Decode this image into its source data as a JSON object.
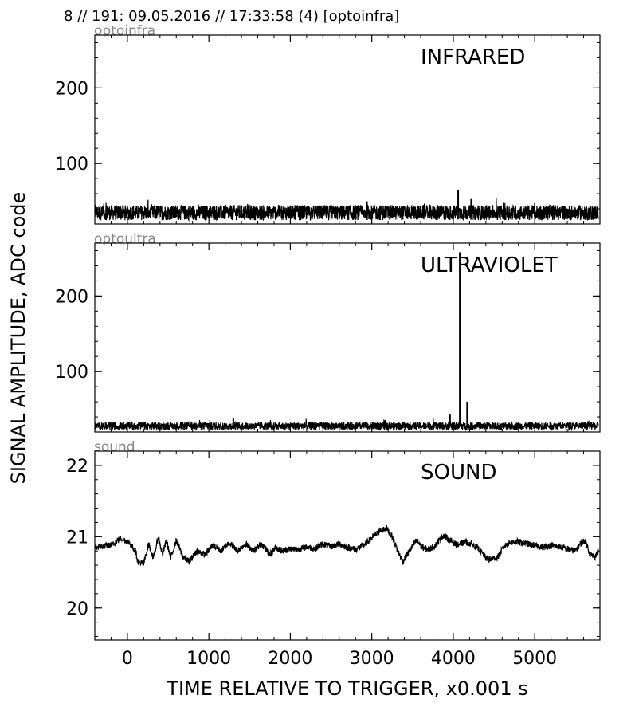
{
  "figure": {
    "title": "8 // 191:   09.05.2016 // 17:33:58 (4)  [optoinfra]",
    "xlabel": "TIME RELATIVE TO TRIGGER,   x0.001 s",
    "ylabel": "SIGNAL AMPLITUDE,  ADC code",
    "line_color": "#000000",
    "tag_color": "#888888"
  },
  "chart_data": [
    {
      "type": "line",
      "channel": "optoinfra",
      "label": "INFRARED",
      "xlim": [
        -400,
        5800
      ],
      "ylim": [
        20,
        270
      ],
      "yticks": [
        100,
        200
      ],
      "xticks": [
        0,
        1000,
        2000,
        3000,
        4000,
        5000
      ],
      "show_xticklabels": false,
      "baseline": 35,
      "noise": 10,
      "spikes": [
        {
          "x": 4060,
          "y": 65
        },
        {
          "x": 4220,
          "y": 53
        },
        {
          "x": 2940,
          "y": 50
        }
      ]
    },
    {
      "type": "line",
      "channel": "optoultra",
      "label": "ULTRAVIOLET",
      "xlim": [
        -400,
        5800
      ],
      "ylim": [
        20,
        270
      ],
      "yticks": [
        100,
        200
      ],
      "xticks": [
        0,
        1000,
        2000,
        3000,
        4000,
        5000
      ],
      "show_xticklabels": false,
      "baseline": 28,
      "noise": 5,
      "spikes": [
        {
          "x": 4080,
          "y": 258
        },
        {
          "x": 4170,
          "y": 60
        },
        {
          "x": 3960,
          "y": 43
        },
        {
          "x": 1300,
          "y": 38
        }
      ]
    },
    {
      "type": "line",
      "channel": "sound",
      "label": "SOUND",
      "xlim": [
        -400,
        5800
      ],
      "ylim": [
        19.55,
        22.2
      ],
      "yticks": [
        20,
        21,
        22
      ],
      "xticks": [
        0,
        1000,
        2000,
        3000,
        4000,
        5000
      ],
      "show_xticklabels": true,
      "points": [
        [
          -400,
          20.85
        ],
        [
          -200,
          20.88
        ],
        [
          -80,
          20.98
        ],
        [
          20,
          20.92
        ],
        [
          100,
          20.8
        ],
        [
          130,
          20.65
        ],
        [
          200,
          20.62
        ],
        [
          260,
          20.9
        ],
        [
          320,
          20.7
        ],
        [
          380,
          21.0
        ],
        [
          430,
          20.75
        ],
        [
          480,
          20.95
        ],
        [
          530,
          20.7
        ],
        [
          600,
          20.95
        ],
        [
          680,
          20.72
        ],
        [
          760,
          20.65
        ],
        [
          850,
          20.8
        ],
        [
          950,
          20.75
        ],
        [
          1050,
          20.88
        ],
        [
          1150,
          20.8
        ],
        [
          1250,
          20.92
        ],
        [
          1350,
          20.8
        ],
        [
          1450,
          20.9
        ],
        [
          1550,
          20.8
        ],
        [
          1650,
          20.9
        ],
        [
          1750,
          20.75
        ],
        [
          1820,
          20.85
        ],
        [
          1900,
          20.8
        ],
        [
          2000,
          20.83
        ],
        [
          2100,
          20.82
        ],
        [
          2200,
          20.86
        ],
        [
          2300,
          20.83
        ],
        [
          2400,
          20.9
        ],
        [
          2500,
          20.86
        ],
        [
          2600,
          20.9
        ],
        [
          2700,
          20.85
        ],
        [
          2800,
          20.82
        ],
        [
          2900,
          20.88
        ],
        [
          3000,
          20.98
        ],
        [
          3100,
          21.08
        ],
        [
          3180,
          21.12
        ],
        [
          3250,
          21.0
        ],
        [
          3320,
          20.8
        ],
        [
          3380,
          20.65
        ],
        [
          3450,
          20.78
        ],
        [
          3550,
          20.95
        ],
        [
          3620,
          20.85
        ],
        [
          3700,
          20.82
        ],
        [
          3780,
          20.88
        ],
        [
          3880,
          21.02
        ],
        [
          3960,
          20.95
        ],
        [
          4050,
          20.88
        ],
        [
          4150,
          20.93
        ],
        [
          4250,
          20.88
        ],
        [
          4320,
          20.82
        ],
        [
          4400,
          20.7
        ],
        [
          4450,
          20.68
        ],
        [
          4550,
          20.72
        ],
        [
          4620,
          20.86
        ],
        [
          4700,
          20.92
        ],
        [
          4800,
          20.93
        ],
        [
          4900,
          20.9
        ],
        [
          5000,
          20.88
        ],
        [
          5100,
          20.85
        ],
        [
          5200,
          20.88
        ],
        [
          5300,
          20.86
        ],
        [
          5400,
          20.83
        ],
        [
          5500,
          20.8
        ],
        [
          5560,
          20.9
        ],
        [
          5620,
          20.95
        ],
        [
          5680,
          20.75
        ],
        [
          5740,
          20.72
        ],
        [
          5780,
          20.8
        ]
      ]
    }
  ]
}
